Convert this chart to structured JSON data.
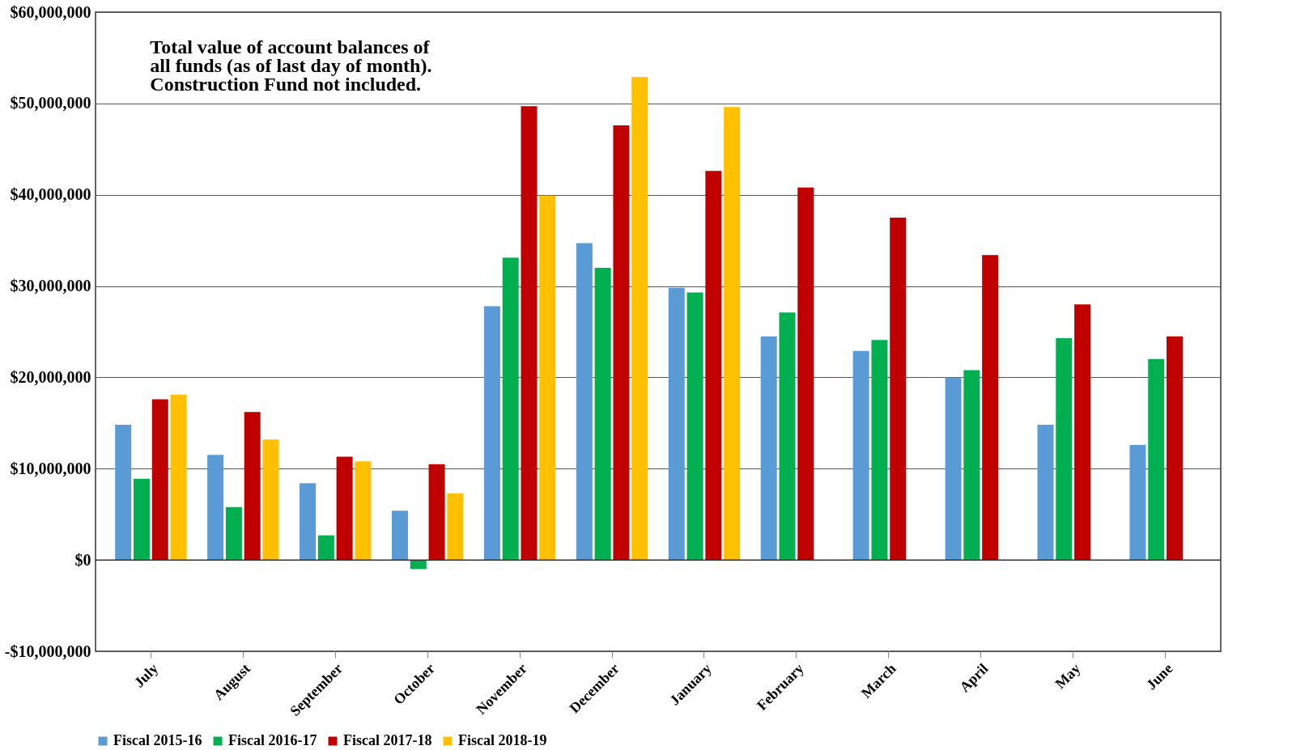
{
  "chart_data": {
    "type": "bar",
    "title": "Total value of account balances of all funds (as of last day of month). Construction Fund not included.",
    "categories": [
      "July",
      "August",
      "September",
      "October",
      "November",
      "December",
      "January",
      "February",
      "March",
      "April",
      "May",
      "June"
    ],
    "series": [
      {
        "name": "Fiscal 2015-16",
        "color": "#5b9bd5",
        "values": [
          14800000.0,
          11500000.0,
          8400000.0,
          5400000.0,
          27800000.0,
          34700000.0,
          29800000.0,
          24500000.0,
          22900000.0,
          20000000.0,
          14800000.0,
          12600000.0
        ]
      },
      {
        "name": "Fiscal 2016-17",
        "color": "#00b050",
        "values": [
          8900000.0,
          5800000.0,
          2700000.0,
          -1000000.0,
          33100000.0,
          32000000.0,
          29300000.0,
          27100000.0,
          24100000.0,
          20800000.0,
          24300000.0,
          22000000.0
        ]
      },
      {
        "name": "Fiscal 2017-18",
        "color": "#c00000",
        "values": [
          17600000.0,
          16200000.0,
          11300000.0,
          10500000.0,
          49700000.0,
          47600000.0,
          42600000.0,
          40800000.0,
          37500000.0,
          33400000.0,
          28000000.0,
          24500000.0
        ]
      },
      {
        "name": "Fiscal 2018-19",
        "color": "#ffc000",
        "values": [
          18100000.0,
          13200000.0,
          10800000.0,
          7300000.0,
          39900000.0,
          52900000.0,
          49600000.0,
          null,
          null,
          null,
          null,
          null
        ]
      }
    ],
    "ylim": [
      -10000000,
      60000000
    ],
    "yticks": [
      {
        "value": -10000000,
        "label": "-$10,000,000"
      },
      {
        "value": 0,
        "label": "$0"
      },
      {
        "value": 10000000,
        "label": "$10,000,000"
      },
      {
        "value": 20000000,
        "label": "$20,000,000"
      },
      {
        "value": 30000000,
        "label": "$30,000,000"
      },
      {
        "value": 40000000,
        "label": "$40,000,000"
      },
      {
        "value": 50000000,
        "label": "$50,000,000"
      },
      {
        "value": 60000000,
        "label": "$60,000,000"
      }
    ],
    "grid": "y",
    "legend": "bottom"
  }
}
